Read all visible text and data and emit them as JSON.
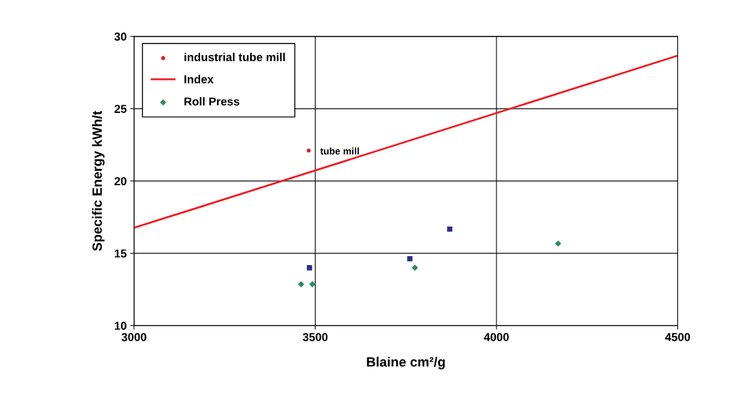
{
  "chart_data": {
    "type": "scatter",
    "xlabel": "Blaine cm²/g",
    "ylabel": "Specific Energy kWh/t",
    "xlim": [
      3000,
      4500
    ],
    "xticks": [
      3000,
      3500,
      4000,
      4500
    ],
    "ylim": [
      10,
      30
    ],
    "yticks": [
      10,
      15,
      20,
      25,
      30
    ],
    "grid": true,
    "legend": "top left",
    "series": [
      {
        "name": "industrial tube mill",
        "marker": "circle",
        "color": "#e0201f",
        "x": [
          3482
        ],
        "values": [
          22.1
        ]
      },
      {
        "name": "Index",
        "type": "line",
        "marker": "none",
        "color": "#ee1c24",
        "x": [
          3000,
          4500
        ],
        "values": [
          16.76,
          28.67
        ]
      },
      {
        "name": "Roll Press",
        "marker": "diamond",
        "color": "#2e8b57",
        "x": [
          3461,
          3492,
          3775,
          4170
        ],
        "values": [
          12.86,
          12.86,
          14.0,
          15.67
        ]
      },
      {
        "marker": "square",
        "color": "#2b2e8c",
        "x": [
          3484,
          3761,
          3871
        ],
        "values": [
          14.0,
          14.62,
          16.67
        ]
      }
    ],
    "annotations": [
      {
        "text": "tube mill",
        "x": 3482,
        "y": 22.1
      }
    ]
  }
}
